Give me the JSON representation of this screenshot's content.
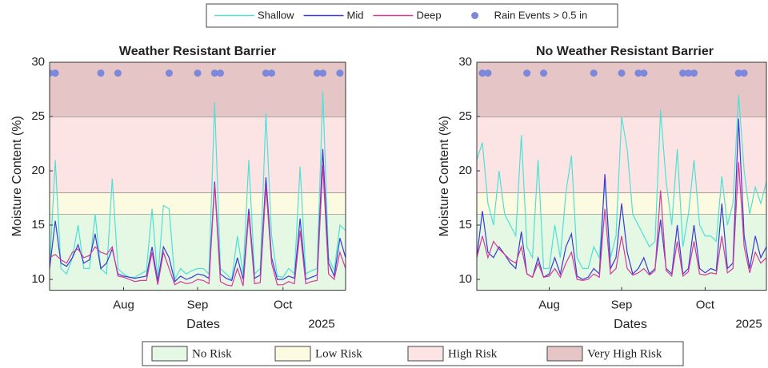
{
  "chart_data": [
    {
      "type": "line",
      "title": "Weather Resistant Barrier",
      "ylabel": "Moisture Content (%)",
      "xlabel": "Dates",
      "x_secondary_label": "2025",
      "categories": [
        null,
        null,
        null,
        null,
        null,
        null,
        null,
        null,
        null,
        null,
        null,
        null,
        null,
        "Aug",
        null,
        null,
        null,
        null,
        null,
        null,
        null,
        null,
        null,
        null,
        null,
        null,
        "Sep",
        null,
        null,
        null,
        null,
        null,
        null,
        null,
        null,
        null,
        null,
        null,
        null,
        null,
        null,
        "Oct",
        null,
        null,
        null,
        null,
        null,
        null,
        null,
        null,
        null,
        null,
        null
      ],
      "ylim": [
        9,
        30
      ],
      "yticks": [
        10,
        15,
        20,
        25,
        30
      ],
      "zones": [
        {
          "name": "No Risk",
          "from": 9,
          "to": 16,
          "color": "#e4f8e4"
        },
        {
          "name": "Low Risk",
          "from": 16,
          "to": 18,
          "color": "#fcfae0"
        },
        {
          "name": "High Risk",
          "from": 18,
          "to": 25,
          "color": "#fce4e4"
        },
        {
          "name": "Very High Risk",
          "from": 25,
          "to": 30,
          "color": "#e5c5c6"
        }
      ],
      "series": [
        {
          "name": "Shallow",
          "color": "#4fe0d6",
          "values": [
            11,
            21,
            11,
            10.5,
            12,
            15,
            11,
            11,
            16,
            11,
            10.5,
            19.3,
            11,
            10.5,
            10.2,
            10.2,
            10.5,
            10.8,
            16.5,
            10,
            16.8,
            16.5,
            10,
            11,
            10.5,
            10.8,
            11,
            11,
            10.5,
            26.3,
            11,
            10.5,
            10,
            14,
            10.5,
            21,
            10.5,
            11,
            25.3,
            14,
            10.3,
            10.2,
            11,
            10.5,
            20.4,
            10.5,
            10.8,
            11,
            27.3,
            12,
            10.8,
            15,
            14.5
          ]
        },
        {
          "name": "Mid",
          "color": "#3a3ad4",
          "values": [
            11,
            15.4,
            11.5,
            11.2,
            12,
            13.2,
            11.5,
            11.8,
            14.2,
            11,
            11.5,
            12.8,
            10.5,
            10.3,
            10.2,
            10.1,
            10.2,
            10.3,
            13,
            9.8,
            13,
            12,
            9.8,
            10.3,
            10,
            10.2,
            10.5,
            10.4,
            10.1,
            19,
            10.5,
            10.1,
            9.9,
            12,
            10,
            16.5,
            10.1,
            10.4,
            19.4,
            12,
            10,
            10,
            10.3,
            10.1,
            15.6,
            10,
            10.2,
            10.4,
            22,
            11.5,
            10.3,
            13.8,
            12
          ]
        },
        {
          "name": "Deep",
          "color": "#d8389a",
          "values": [
            12,
            12.3,
            11.8,
            11.5,
            12.5,
            12.8,
            12,
            12.2,
            13,
            12.5,
            12.3,
            13,
            10.3,
            10.2,
            10,
            9.8,
            9.9,
            9.9,
            12.5,
            9.5,
            12.5,
            11,
            9.5,
            9.8,
            9.6,
            9.7,
            10,
            9.9,
            9.6,
            18.7,
            9.8,
            9.5,
            9.4,
            11,
            9.4,
            16,
            9.6,
            9.7,
            18.5,
            11.5,
            9.5,
            9.5,
            9.8,
            9.6,
            14.5,
            9.6,
            9.8,
            9.9,
            20.5,
            10.5,
            10,
            12.5,
            11
          ]
        },
        {
          "name": "Rain Events > 0.5 in",
          "color": "#7b88dc",
          "marker": "dot",
          "values": [
            29,
            29,
            null,
            null,
            null,
            null,
            null,
            null,
            null,
            29,
            null,
            null,
            29,
            null,
            null,
            null,
            null,
            null,
            null,
            null,
            null,
            29,
            null,
            null,
            null,
            null,
            29,
            null,
            null,
            29,
            29,
            null,
            null,
            null,
            null,
            null,
            null,
            null,
            29,
            29,
            null,
            null,
            null,
            null,
            null,
            null,
            null,
            29,
            29,
            null,
            null,
            29,
            null
          ]
        }
      ]
    },
    {
      "type": "line",
      "title": "No Weather Resistant Barrier",
      "ylabel": "Moisture Content (%)",
      "xlabel": "Dates",
      "x_secondary_label": "2025",
      "categories": [
        null,
        null,
        null,
        null,
        null,
        null,
        null,
        null,
        null,
        null,
        null,
        null,
        null,
        "Aug",
        null,
        null,
        null,
        null,
        null,
        null,
        null,
        null,
        null,
        null,
        null,
        null,
        "Sep",
        null,
        null,
        null,
        null,
        null,
        null,
        null,
        null,
        null,
        null,
        null,
        null,
        null,
        null,
        "Oct",
        null,
        null,
        null,
        null,
        null,
        null,
        null,
        null,
        null,
        null,
        null
      ],
      "ylim": [
        9,
        30
      ],
      "yticks": [
        10,
        15,
        20,
        25,
        30
      ],
      "zones": [
        {
          "from": 9,
          "to": 16,
          "color": "#e4f8e4"
        },
        {
          "from": 16,
          "to": 18,
          "color": "#fcfae0"
        },
        {
          "from": 18,
          "to": 25,
          "color": "#fce4e4"
        },
        {
          "from": 25,
          "to": 30,
          "color": "#e5c5c6"
        }
      ],
      "series": [
        {
          "color": "#4fe0d6",
          "values": [
            21,
            22.6,
            17,
            15,
            20,
            16,
            15,
            14,
            23.3,
            13,
            12,
            21,
            11,
            11,
            15,
            12,
            18,
            21.4,
            12,
            11,
            11,
            13,
            12,
            19,
            12,
            14,
            25,
            22,
            16,
            15,
            14,
            13,
            13.5,
            25.6,
            19,
            15,
            22,
            13,
            16,
            21,
            15,
            14,
            14,
            13.5,
            19.5,
            15,
            17,
            27,
            20,
            16,
            18.5,
            17,
            19
          ]
        },
        {
          "color": "#3a3ad4",
          "values": [
            12,
            16.3,
            12.5,
            12,
            13,
            12.3,
            11.5,
            11,
            14.4,
            10.5,
            10.2,
            12,
            10.2,
            10.5,
            12,
            10.5,
            13,
            14.2,
            10.3,
            10,
            10.2,
            11,
            10.5,
            19.7,
            11,
            12,
            17,
            12.5,
            10.5,
            11,
            12,
            10.5,
            11,
            15.5,
            11,
            10.5,
            15,
            10.5,
            11,
            15,
            11,
            10.6,
            11,
            10.8,
            17,
            11,
            11.5,
            24.8,
            14,
            11,
            14,
            12,
            13
          ]
        },
        {
          "color": "#d8389a",
          "values": [
            12,
            14,
            12,
            13.5,
            12.8,
            12.3,
            11.8,
            11.5,
            13,
            10.5,
            10.2,
            11.5,
            10.2,
            10.3,
            11,
            10.2,
            11.5,
            12.5,
            10,
            9.9,
            10,
            10.5,
            10.2,
            16.5,
            10.5,
            11,
            14,
            11,
            10.4,
            10.6,
            11,
            10.4,
            10.8,
            18.2,
            10.8,
            10.3,
            13.5,
            10.3,
            10.7,
            13.5,
            10.5,
            10.4,
            10.6,
            10.5,
            14,
            10.6,
            11,
            20.8,
            13,
            10.6,
            12.5,
            11.5,
            12
          ]
        },
        {
          "color": "#7b88dc",
          "marker": "dot",
          "values": [
            null,
            29,
            29,
            null,
            null,
            null,
            null,
            null,
            null,
            29,
            null,
            null,
            29,
            null,
            null,
            null,
            null,
            null,
            null,
            null,
            null,
            29,
            null,
            null,
            null,
            null,
            29,
            null,
            null,
            29,
            29,
            null,
            null,
            null,
            null,
            null,
            null,
            29,
            29,
            29,
            null,
            null,
            null,
            null,
            null,
            null,
            null,
            29,
            29,
            null,
            null,
            null,
            null
          ]
        }
      ]
    }
  ]
}
